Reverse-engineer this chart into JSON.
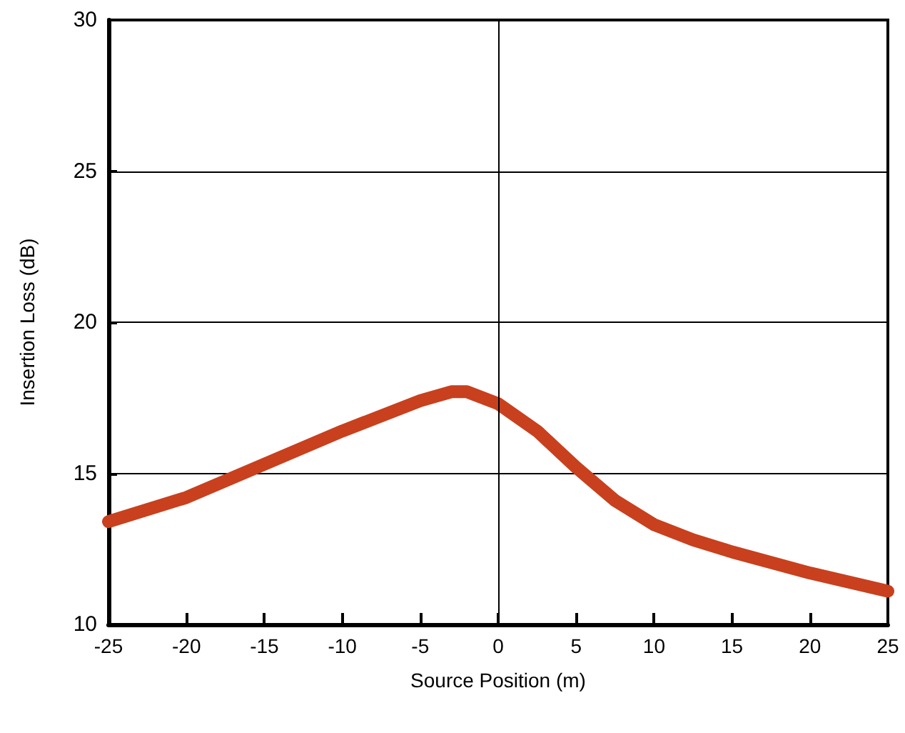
{
  "chart_data": {
    "type": "line",
    "xlabel": "Source Position (m)",
    "ylabel": "Insertion Loss (dB)",
    "x": [
      -25,
      -20,
      -15,
      -10,
      -5,
      -3,
      -2,
      0,
      2.5,
      5,
      7.5,
      10,
      12.5,
      15,
      20,
      25
    ],
    "series": [
      {
        "color": "#c8401e",
        "values": [
          13.4,
          14.2,
          15.3,
          16.4,
          17.4,
          17.7,
          17.7,
          17.3,
          16.4,
          15.2,
          14.1,
          13.3,
          12.8,
          12.4,
          11.7,
          11.1
        ]
      }
    ],
    "xlim": [
      -25,
      25
    ],
    "xticks": [
      -25,
      -20,
      -15,
      -10,
      -5,
      0,
      5,
      10,
      15,
      20,
      25
    ],
    "ylim": [
      10,
      30
    ],
    "yticks": [
      10,
      15,
      20,
      25,
      30
    ],
    "grid": "y",
    "line_style": "solid",
    "ref_lines": [
      {
        "axis": "x",
        "value": 0,
        "color": "#000000"
      }
    ]
  }
}
